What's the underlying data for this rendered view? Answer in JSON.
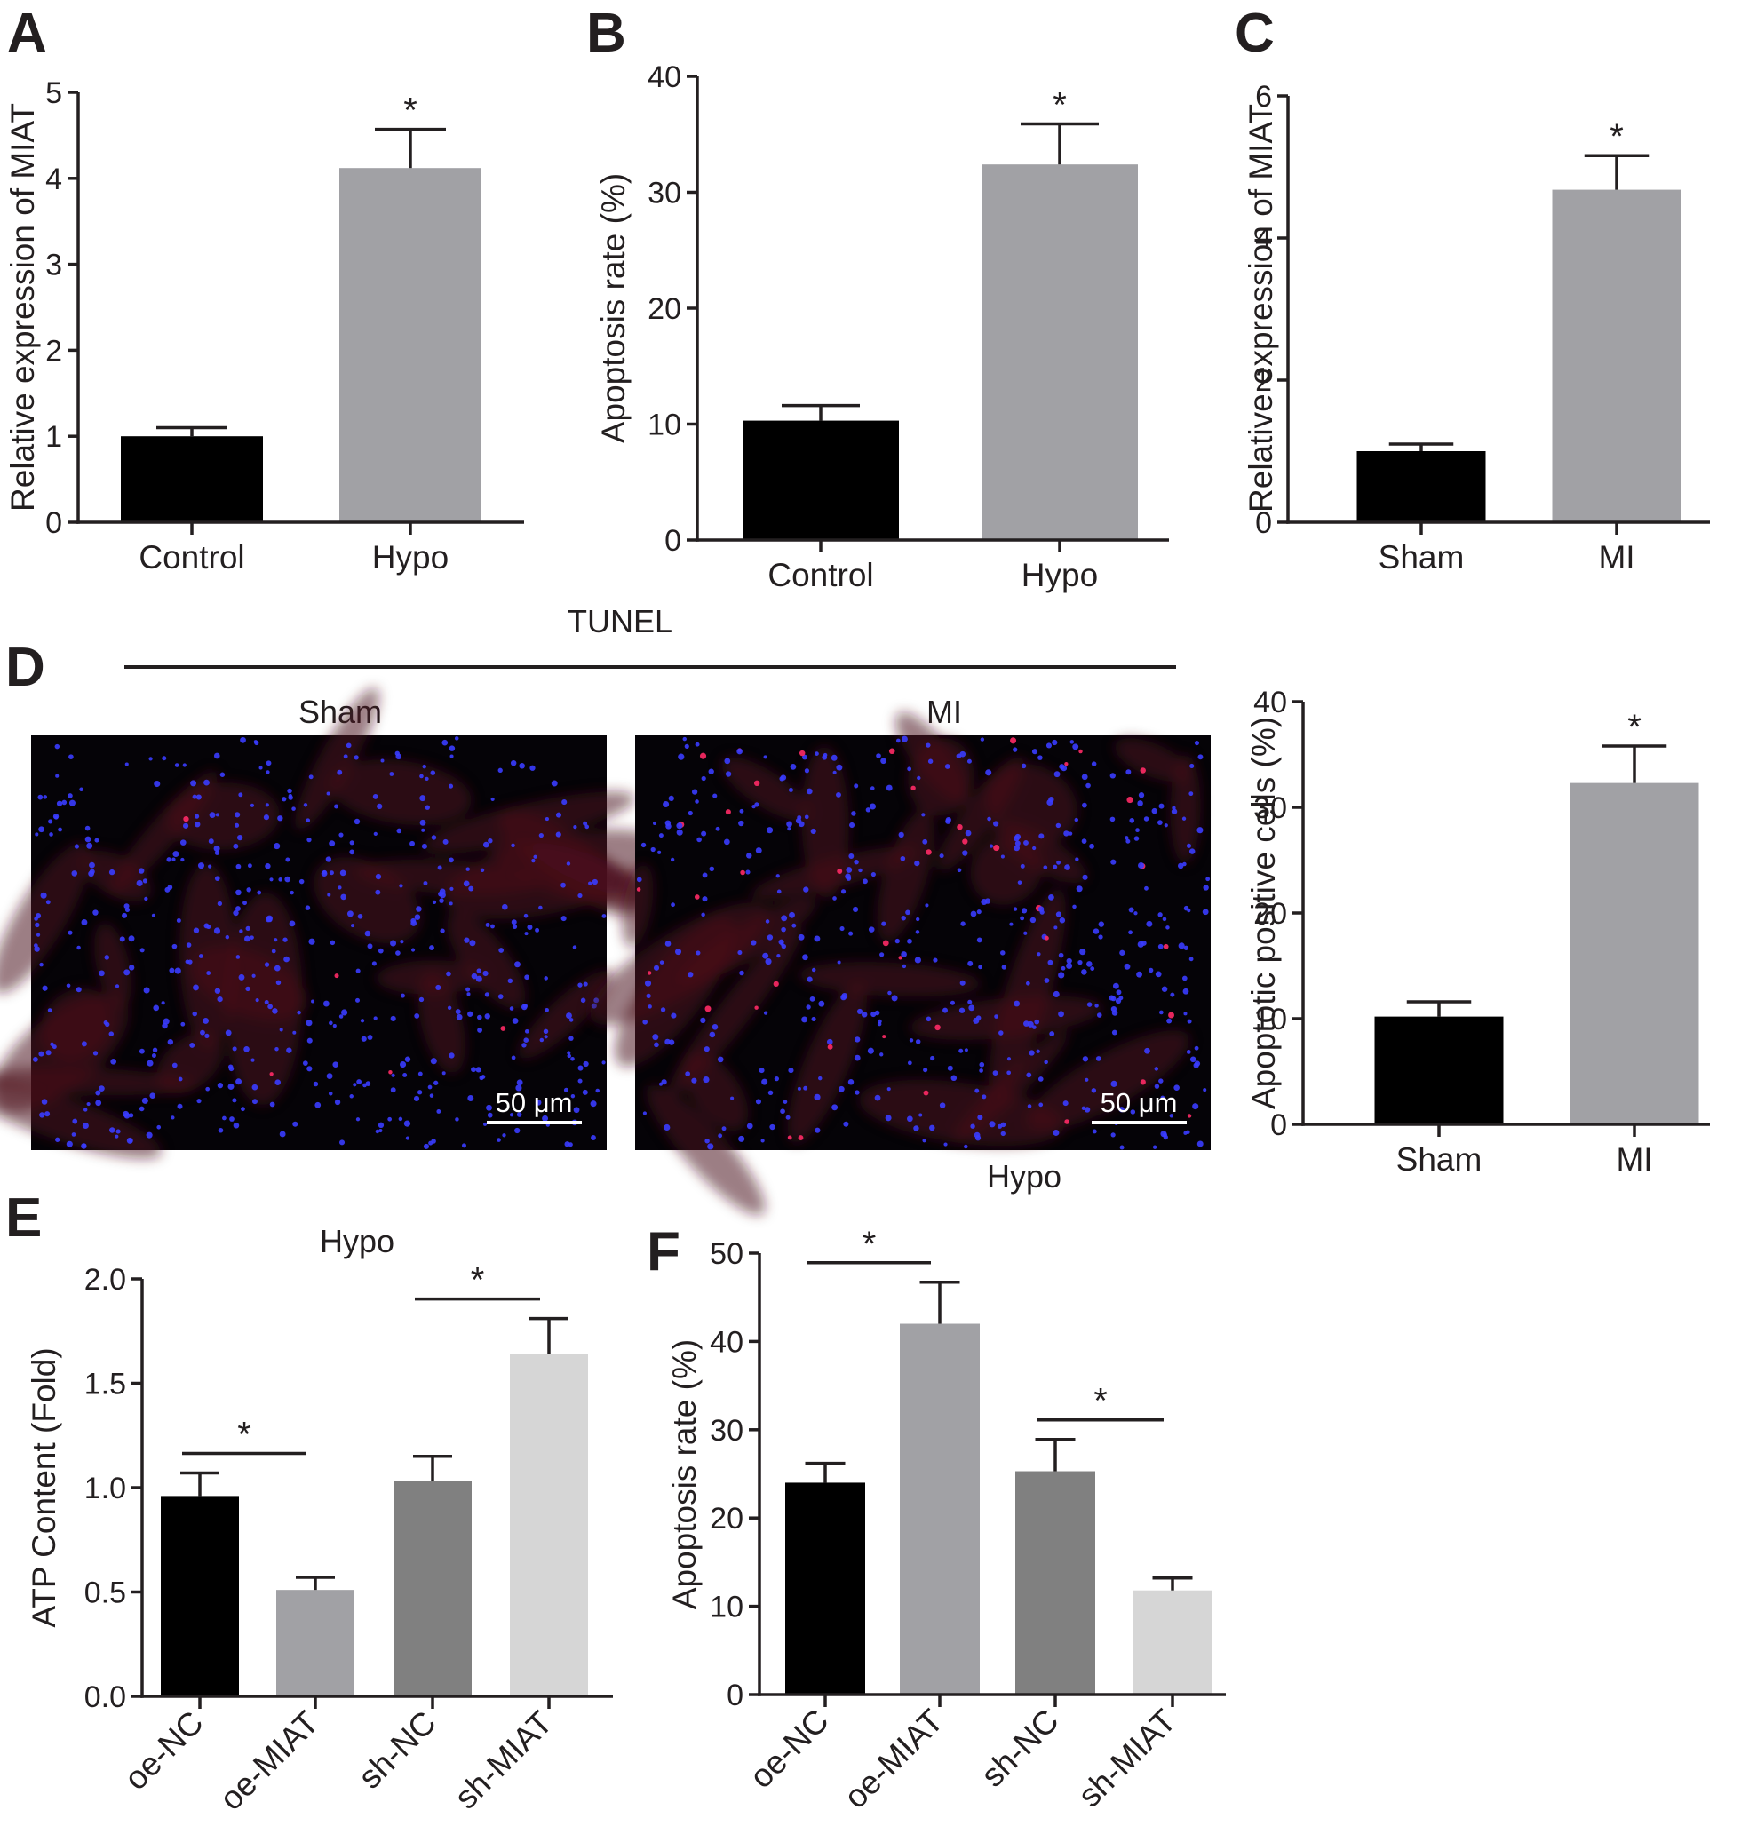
{
  "panels": {
    "A": "A",
    "B": "B",
    "C": "C",
    "D": "D",
    "E": "E",
    "F": "F"
  },
  "tunel": {
    "title": "TUNEL",
    "left_label": "Sham",
    "right_label": "MI",
    "scale_bar": "50 μm",
    "dapi_color": "#3a3cff",
    "tunel_color": "#ff2a66"
  },
  "chart_data": [
    {
      "id": "A",
      "type": "bar",
      "categories": [
        "Control",
        "Hypo"
      ],
      "values": [
        1.0,
        4.12
      ],
      "errors": [
        0.1,
        0.45
      ],
      "colors": [
        "#000000",
        "#a1a1a5"
      ],
      "title": "",
      "xlabel": "",
      "ylabel": "Relative expression of MIAT",
      "ylim": [
        0,
        5
      ],
      "yticks": [
        0,
        1,
        2,
        3,
        4,
        5
      ],
      "ytick_labels": [
        "0",
        "1",
        "2",
        "3",
        "4",
        "5"
      ],
      "significance": [
        {
          "bar": 1,
          "label": "*"
        }
      ],
      "group_label": ""
    },
    {
      "id": "B",
      "type": "bar",
      "categories": [
        "Control",
        "Hypo"
      ],
      "values": [
        10.3,
        32.4
      ],
      "errors": [
        1.3,
        3.5
      ],
      "colors": [
        "#000000",
        "#a1a1a5"
      ],
      "title": "",
      "xlabel": "",
      "ylabel": "Apoptosis rate (%)",
      "ylim": [
        0,
        40
      ],
      "yticks": [
        0,
        10,
        20,
        30,
        40
      ],
      "ytick_labels": [
        "0",
        "10",
        "20",
        "30",
        "40"
      ],
      "significance": [
        {
          "bar": 1,
          "label": "*"
        }
      ],
      "group_label": ""
    },
    {
      "id": "C",
      "type": "bar",
      "categories": [
        "Sham",
        "MI"
      ],
      "values": [
        1.0,
        4.68
      ],
      "errors": [
        0.1,
        0.48
      ],
      "colors": [
        "#000000",
        "#a1a1a5"
      ],
      "title": "",
      "xlabel": "",
      "ylabel": "Relative expression of MIAT",
      "ylim": [
        0,
        6
      ],
      "yticks": [
        0,
        2,
        4,
        6
      ],
      "ytick_labels": [
        "0",
        "2",
        "4",
        "6"
      ],
      "significance": [
        {
          "bar": 1,
          "label": "*"
        }
      ],
      "group_label": ""
    },
    {
      "id": "D",
      "type": "bar",
      "categories": [
        "Sham",
        "MI"
      ],
      "values": [
        10.2,
        32.3
      ],
      "errors": [
        1.4,
        3.5
      ],
      "colors": [
        "#000000",
        "#a1a1a5"
      ],
      "title": "",
      "xlabel": "",
      "ylabel": "Apoptotic positive cells (%)",
      "ylim": [
        0,
        40
      ],
      "yticks": [
        0,
        10,
        20,
        30,
        40
      ],
      "ytick_labels": [
        "0",
        "10",
        "20",
        "30",
        "40"
      ],
      "significance": [
        {
          "bar": 1,
          "label": "*"
        }
      ],
      "group_label": ""
    },
    {
      "id": "E",
      "type": "bar",
      "categories": [
        "oe-NC",
        "oe-MIAT",
        "sh-NC",
        "sh-MIAT"
      ],
      "values": [
        0.96,
        0.51,
        1.03,
        1.64
      ],
      "errors": [
        0.11,
        0.06,
        0.12,
        0.17
      ],
      "colors": [
        "#000000",
        "#a1a1a5",
        "#808080",
        "#d6d6d6"
      ],
      "title": "",
      "xlabel": "",
      "ylabel": "ATP Content (Fold)",
      "ylim": [
        0,
        2.0
      ],
      "yticks": [
        0,
        0.5,
        1.0,
        1.5,
        2.0
      ],
      "ytick_labels": [
        "0.0",
        "0.5",
        "1.0",
        "1.5",
        "2.0"
      ],
      "significance": [
        {
          "pair": [
            0,
            1
          ],
          "label": "*"
        },
        {
          "pair": [
            2,
            3
          ],
          "label": "*"
        }
      ],
      "group_label": "Hypo"
    },
    {
      "id": "F",
      "type": "bar",
      "categories": [
        "oe-NC",
        "oe-MIAT",
        "sh-NC",
        "sh-MIAT"
      ],
      "values": [
        24.0,
        42.0,
        25.3,
        11.8
      ],
      "errors": [
        2.2,
        4.7,
        3.6,
        1.4
      ],
      "colors": [
        "#000000",
        "#a1a1a5",
        "#808080",
        "#d6d6d6"
      ],
      "title": "",
      "xlabel": "",
      "ylabel": "Apoptosis rate (%)",
      "ylim": [
        0,
        50
      ],
      "yticks": [
        0,
        10,
        20,
        30,
        40,
        50
      ],
      "ytick_labels": [
        "0",
        "10",
        "20",
        "30",
        "40",
        "50"
      ],
      "significance": [
        {
          "pair": [
            0,
            1
          ],
          "label": "*"
        },
        {
          "pair": [
            2,
            3
          ],
          "label": "*"
        }
      ],
      "group_label": "Hypo"
    }
  ]
}
